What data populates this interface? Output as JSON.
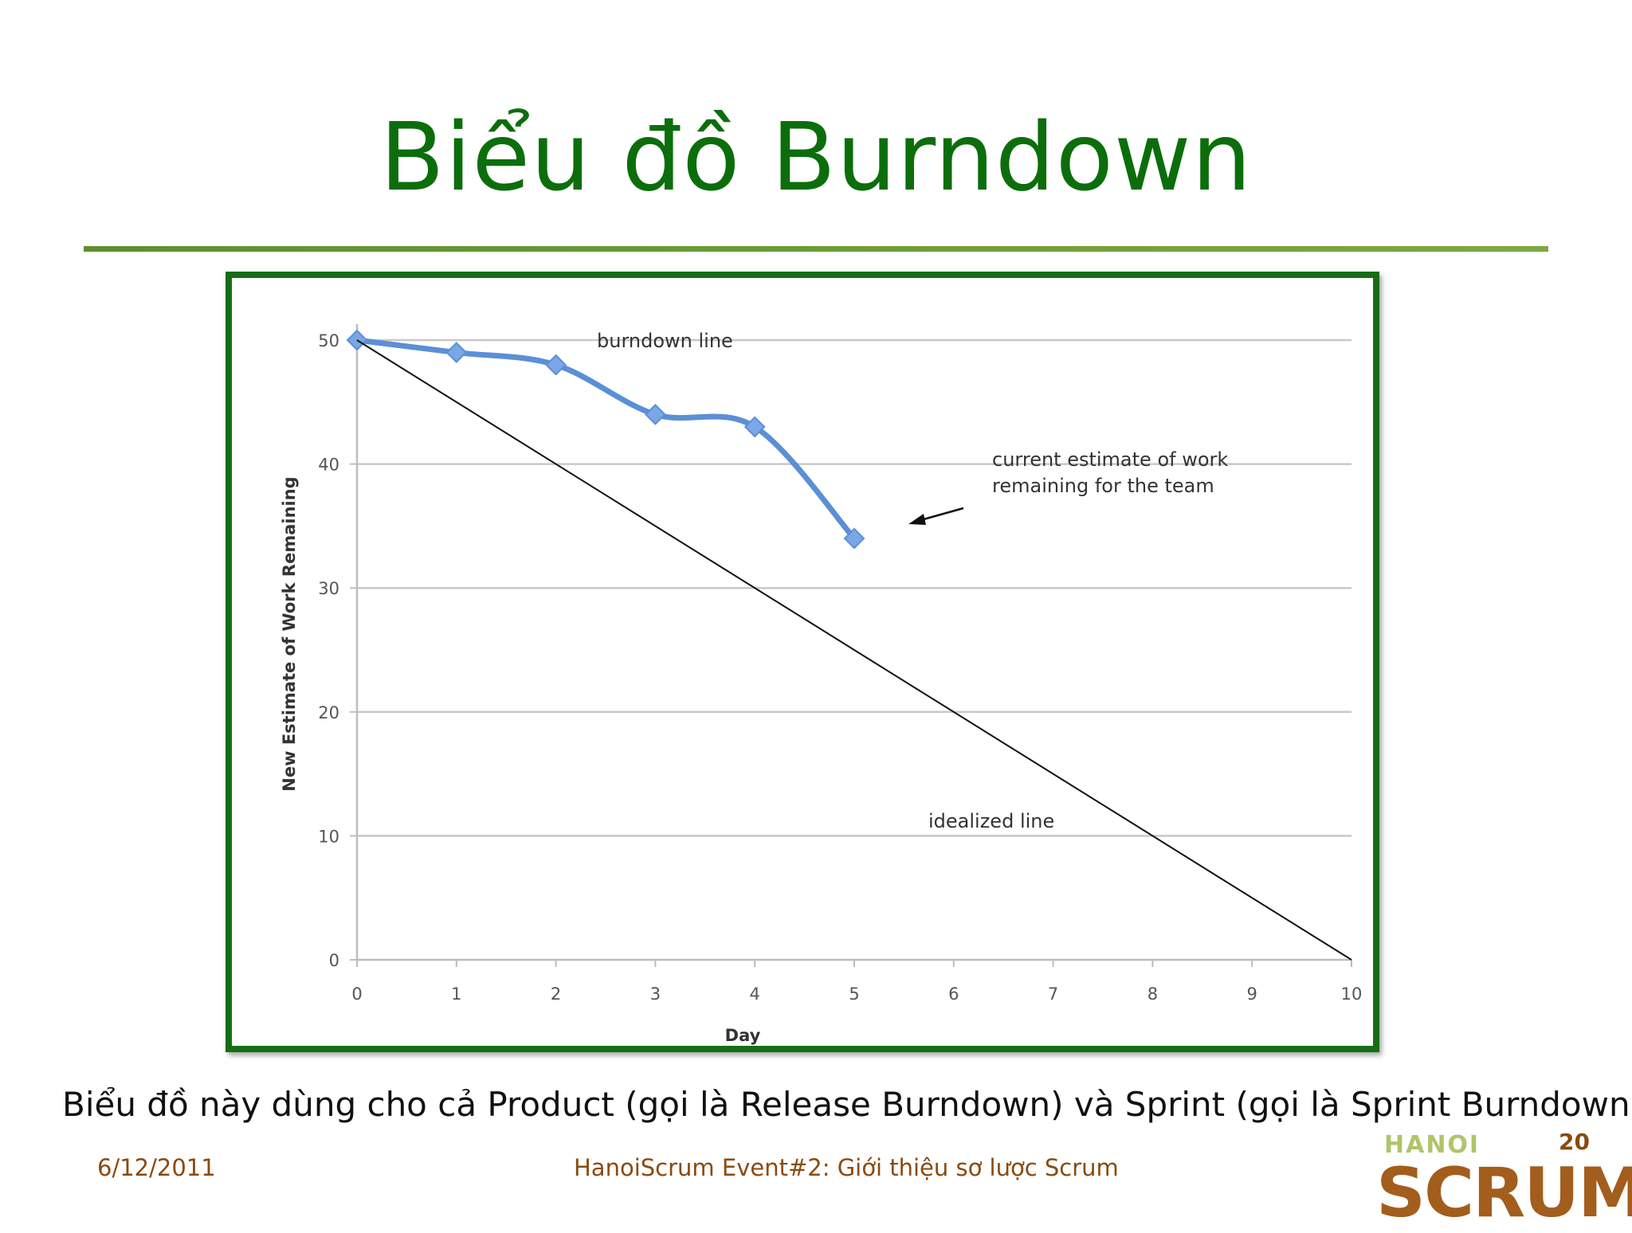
{
  "slide": {
    "title": "Biểu đồ Burndown",
    "caption": "Biểu đồ này dùng cho cả Product (gọi là Release Burndown) và Sprint (gọi là Sprint Burndown)",
    "footer_date": "6/12/2011",
    "footer_event": "HanoiScrum Event#2: Giới thiệu  sơ lược Scrum",
    "page_number": "20",
    "logo_top": "HANOI",
    "logo_main": "SCRUM",
    "colors": {
      "title": "#0b6e0b",
      "frame": "#166d16",
      "rule": "#6b9a35",
      "footer": "#8a4a10",
      "burndown": "#5b8fd6",
      "ideal": "#111111"
    }
  },
  "chart_data": {
    "type": "line",
    "title": "",
    "xlabel": "Day",
    "ylabel": "New Estimate of Work Remaining",
    "x_ticks": [
      0,
      1,
      2,
      3,
      4,
      5,
      6,
      7,
      8,
      9,
      10
    ],
    "y_ticks": [
      0,
      10,
      20,
      30,
      40,
      50
    ],
    "xlim": [
      0,
      10
    ],
    "ylim": [
      0,
      50
    ],
    "grid": "horizontal",
    "series": [
      {
        "x": [
          0,
          1,
          2,
          3,
          4,
          5
        ],
        "values": [
          50,
          49,
          48,
          44,
          43,
          34
        ],
        "color": "#5b8fd6",
        "marker": "diamond"
      },
      {
        "x": [
          0,
          10
        ],
        "values": [
          50,
          0
        ],
        "color": "#111111",
        "marker": "none"
      }
    ],
    "annotations": {
      "burndown": "burndown line",
      "current_line1": "current estimate of work",
      "current_line2": "remaining for the team",
      "idealized": "idealized line"
    }
  }
}
